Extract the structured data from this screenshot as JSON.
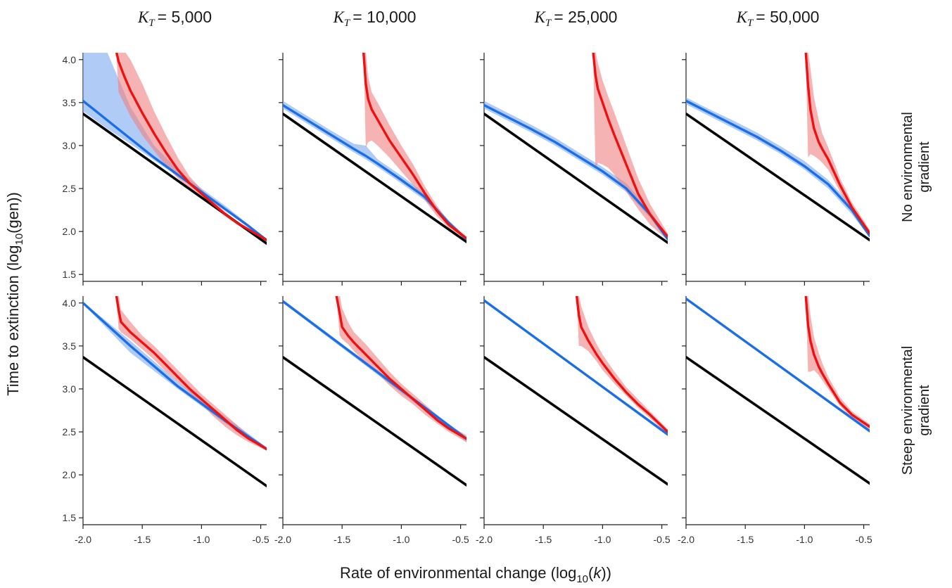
{
  "chart_data": {
    "type": "line",
    "columns": [
      {
        "title": "K_T = 5,000",
        "symbol": "K",
        "subscript": "T",
        "value_text": "= 5,000"
      },
      {
        "title": "K_T = 10,000",
        "symbol": "K",
        "subscript": "T",
        "value_text": "= 10,000"
      },
      {
        "title": "K_T = 25,000",
        "symbol": "K",
        "subscript": "T",
        "value_text": "= 25,000"
      },
      {
        "title": "K_T = 50,000",
        "symbol": "K",
        "subscript": "T",
        "value_text": "= 50,000"
      }
    ],
    "rows": [
      {
        "label_lines": [
          "No environmental",
          "gradient"
        ]
      },
      {
        "label_lines": [
          "Steep environmental",
          "gradient"
        ]
      }
    ],
    "xlabel": "Rate of environmental change (log10(k))",
    "ylabel": "Time to extinction (log10(gen))",
    "xlim": [
      -2.0,
      -0.45
    ],
    "ylim": [
      1.42,
      4.08
    ],
    "xticks": [
      -2.0,
      -1.5,
      -1.0,
      -0.5
    ],
    "yticks": [
      1.5,
      2.0,
      2.5,
      3.0,
      3.5,
      4.0
    ],
    "xtick_labels": [
      "-2.0",
      "-1.5",
      "-1.0",
      "-0.5"
    ],
    "ytick_labels": [
      "1.5",
      "2.0",
      "2.5",
      "3.0",
      "3.5",
      "4.0"
    ],
    "colors": {
      "black": "#000000",
      "blue": "#1a6fe8",
      "blue_band": "#7aa8f0",
      "red": "#ee1111",
      "red_band": "#f08080",
      "black_band": "#888888"
    },
    "panels": [
      {
        "row": 0,
        "col": 0,
        "black": {
          "x": [
            -2.0,
            -0.45
          ],
          "y": [
            3.37,
            1.86
          ],
          "band": 0.02
        },
        "blue": {
          "x": [
            -2.0,
            -1.8,
            -1.6,
            -1.4,
            -1.2,
            -1.0,
            -0.8,
            -0.6,
            -0.45
          ],
          "y": [
            3.52,
            3.3,
            3.08,
            2.86,
            2.66,
            2.46,
            2.26,
            2.06,
            1.9
          ],
          "lower": [
            3.4,
            3.2,
            3.02,
            2.83,
            2.64,
            2.44,
            2.25,
            2.05,
            1.89
          ],
          "upper": [
            4.1,
            4.1,
            3.45,
            3.0,
            2.72,
            2.5,
            2.3,
            2.08,
            1.91
          ]
        },
        "red": {
          "x": [
            -1.72,
            -1.7,
            -1.65,
            -1.6,
            -1.5,
            -1.4,
            -1.3,
            -1.2,
            -1.1,
            -1.0,
            -0.9,
            -0.8,
            -0.7,
            -0.6,
            -0.45
          ],
          "y": [
            4.1,
            3.98,
            3.8,
            3.64,
            3.38,
            3.14,
            2.92,
            2.72,
            2.56,
            2.44,
            2.32,
            2.2,
            2.1,
            2.02,
            1.9
          ],
          "lower": [
            4.1,
            3.62,
            3.48,
            3.34,
            3.12,
            2.94,
            2.76,
            2.62,
            2.5,
            2.4,
            2.29,
            2.18,
            2.08,
            2.0,
            1.89
          ],
          "upper": [
            4.1,
            4.1,
            4.1,
            4.0,
            3.72,
            3.4,
            3.12,
            2.86,
            2.64,
            2.49,
            2.36,
            2.23,
            2.12,
            2.04,
            1.91
          ]
        }
      },
      {
        "row": 0,
        "col": 1,
        "black": {
          "x": [
            -2.0,
            -0.45
          ],
          "y": [
            3.37,
            1.88
          ],
          "band": 0.02
        },
        "blue": {
          "x": [
            -2.0,
            -1.8,
            -1.6,
            -1.4,
            -1.3,
            -1.2,
            -1.0,
            -0.8,
            -0.6,
            -0.45
          ],
          "y": [
            3.47,
            3.3,
            3.13,
            2.96,
            2.88,
            2.79,
            2.6,
            2.4,
            2.1,
            1.91
          ],
          "lower": [
            3.43,
            3.26,
            3.09,
            2.92,
            2.84,
            2.75,
            2.56,
            2.36,
            2.08,
            1.89
          ],
          "upper": [
            3.52,
            3.35,
            3.18,
            3.02,
            3.0,
            2.84,
            2.65,
            2.44,
            2.13,
            1.93
          ]
        },
        "red": {
          "x": [
            -1.32,
            -1.3,
            -1.28,
            -1.25,
            -1.2,
            -1.1,
            -1.0,
            -0.9,
            -0.8,
            -0.7,
            -0.6,
            -0.45
          ],
          "y": [
            4.1,
            3.72,
            3.54,
            3.42,
            3.3,
            3.06,
            2.86,
            2.66,
            2.44,
            2.24,
            2.08,
            1.92
          ],
          "lower": [
            4.1,
            2.98,
            3.04,
            3.06,
            3.0,
            2.86,
            2.7,
            2.54,
            2.36,
            2.18,
            2.04,
            1.9
          ],
          "upper": [
            4.1,
            4.1,
            3.8,
            3.62,
            3.5,
            3.24,
            3.0,
            2.78,
            2.52,
            2.3,
            2.12,
            1.94
          ]
        }
      },
      {
        "row": 0,
        "col": 2,
        "black": {
          "x": [
            -2.0,
            -0.45
          ],
          "y": [
            3.37,
            1.87
          ],
          "band": 0.02
        },
        "blue": {
          "x": [
            -2.0,
            -1.8,
            -1.6,
            -1.4,
            -1.2,
            -1.0,
            -0.8,
            -0.6,
            -0.45
          ],
          "y": [
            3.47,
            3.33,
            3.19,
            3.04,
            2.87,
            2.7,
            2.5,
            2.2,
            1.91
          ],
          "lower": [
            3.43,
            3.29,
            3.15,
            3.0,
            2.83,
            2.66,
            2.46,
            2.16,
            1.89
          ],
          "upper": [
            3.52,
            3.38,
            3.24,
            3.09,
            2.92,
            2.75,
            2.56,
            2.25,
            1.93
          ]
        },
        "red": {
          "x": [
            -1.08,
            -1.06,
            -1.04,
            -1.0,
            -0.95,
            -0.9,
            -0.8,
            -0.7,
            -0.6,
            -0.45
          ],
          "y": [
            4.1,
            3.82,
            3.66,
            3.5,
            3.3,
            3.12,
            2.78,
            2.44,
            2.2,
            1.94
          ],
          "lower": [
            4.1,
            2.72,
            2.8,
            2.78,
            2.74,
            2.66,
            2.46,
            2.26,
            2.08,
            1.9
          ],
          "upper": [
            4.1,
            4.1,
            3.96,
            3.76,
            3.56,
            3.38,
            3.0,
            2.62,
            2.32,
            1.98
          ]
        }
      },
      {
        "row": 0,
        "col": 3,
        "black": {
          "x": [
            -2.0,
            -0.45
          ],
          "y": [
            3.37,
            1.9
          ],
          "band": 0.02
        },
        "blue": {
          "x": [
            -2.0,
            -1.8,
            -1.6,
            -1.4,
            -1.2,
            -1.0,
            -0.8,
            -0.6,
            -0.45
          ],
          "y": [
            3.52,
            3.38,
            3.24,
            3.1,
            2.94,
            2.76,
            2.55,
            2.25,
            1.95
          ],
          "lower": [
            3.48,
            3.34,
            3.2,
            3.06,
            2.9,
            2.72,
            2.5,
            2.2,
            1.93
          ],
          "upper": [
            3.56,
            3.42,
            3.29,
            3.15,
            2.99,
            2.82,
            2.6,
            2.3,
            1.97
          ]
        },
        "red": {
          "x": [
            -0.99,
            -0.97,
            -0.95,
            -0.92,
            -0.88,
            -0.85,
            -0.8,
            -0.7,
            -0.6,
            -0.45
          ],
          "y": [
            4.1,
            3.7,
            3.42,
            3.2,
            3.04,
            2.96,
            2.84,
            2.54,
            2.28,
            1.98
          ],
          "lower": [
            4.1,
            2.86,
            2.9,
            2.88,
            2.84,
            2.8,
            2.72,
            2.46,
            2.22,
            1.94
          ],
          "upper": [
            4.1,
            4.1,
            3.9,
            3.56,
            3.3,
            3.14,
            2.98,
            2.62,
            2.34,
            2.02
          ]
        }
      },
      {
        "row": 1,
        "col": 0,
        "black": {
          "x": [
            -2.0,
            -0.45
          ],
          "y": [
            3.37,
            1.87
          ],
          "band": 0.02
        },
        "blue": {
          "x": [
            -2.0,
            -1.6,
            -1.2,
            -0.8,
            -0.45
          ],
          "y": [
            4.0,
            3.5,
            3.03,
            2.63,
            2.3
          ],
          "lower": [
            3.99,
            3.42,
            3.0,
            2.6,
            2.28
          ],
          "upper": [
            4.01,
            3.56,
            3.08,
            2.68,
            2.32
          ]
        },
        "red": {
          "x": [
            -1.72,
            -1.7,
            -1.68,
            -1.6,
            -1.5,
            -1.4,
            -1.3,
            -1.2,
            -1.1,
            -1.0,
            -0.9,
            -0.8,
            -0.7,
            -0.6,
            -0.45
          ],
          "y": [
            4.1,
            3.92,
            3.78,
            3.66,
            3.54,
            3.42,
            3.28,
            3.14,
            3.0,
            2.88,
            2.76,
            2.64,
            2.52,
            2.42,
            2.3
          ],
          "lower": [
            4.1,
            3.7,
            3.66,
            3.58,
            3.46,
            3.34,
            3.2,
            3.08,
            2.96,
            2.82,
            2.68,
            2.56,
            2.46,
            2.38,
            2.28
          ],
          "upper": [
            4.1,
            4.1,
            3.92,
            3.78,
            3.62,
            3.5,
            3.36,
            3.22,
            3.08,
            2.94,
            2.82,
            2.7,
            2.58,
            2.46,
            2.32
          ]
        }
      },
      {
        "row": 1,
        "col": 1,
        "black": {
          "x": [
            -2.0,
            -0.45
          ],
          "y": [
            3.37,
            1.88
          ],
          "band": 0.02
        },
        "blue": {
          "x": [
            -2.0,
            -0.45
          ],
          "y": [
            4.02,
            2.42
          ],
          "lower": [
            4.0,
            2.38
          ],
          "upper": [
            4.04,
            2.44
          ]
        },
        "red": {
          "x": [
            -1.55,
            -1.52,
            -1.5,
            -1.45,
            -1.4,
            -1.3,
            -1.2,
            -1.1,
            -1.0,
            -0.9,
            -0.8,
            -0.7,
            -0.6,
            -0.45
          ],
          "y": [
            4.1,
            3.88,
            3.72,
            3.62,
            3.54,
            3.4,
            3.26,
            3.12,
            3.0,
            2.88,
            2.76,
            2.64,
            2.54,
            2.42
          ],
          "lower": [
            4.1,
            3.62,
            3.58,
            3.52,
            3.44,
            3.3,
            3.18,
            3.04,
            2.92,
            2.82,
            2.7,
            2.6,
            2.5,
            2.38
          ],
          "upper": [
            4.1,
            4.1,
            3.94,
            3.78,
            3.66,
            3.52,
            3.36,
            3.2,
            3.06,
            2.94,
            2.82,
            2.7,
            2.58,
            2.46
          ]
        }
      },
      {
        "row": 1,
        "col": 2,
        "black": {
          "x": [
            -2.0,
            -0.45
          ],
          "y": [
            3.37,
            1.89
          ],
          "band": 0.02
        },
        "blue": {
          "x": [
            -2.0,
            -0.45
          ],
          "y": [
            4.03,
            2.47
          ],
          "lower": [
            4.02,
            2.45
          ],
          "upper": [
            4.04,
            2.49
          ]
        },
        "red": {
          "x": [
            -1.22,
            -1.2,
            -1.18,
            -1.12,
            -1.05,
            -1.0,
            -0.9,
            -0.8,
            -0.7,
            -0.6,
            -0.45
          ],
          "y": [
            4.1,
            3.86,
            3.72,
            3.56,
            3.4,
            3.3,
            3.12,
            2.96,
            2.82,
            2.7,
            2.5
          ],
          "lower": [
            4.1,
            3.5,
            3.5,
            3.44,
            3.32,
            3.22,
            3.06,
            2.92,
            2.78,
            2.66,
            2.47
          ],
          "upper": [
            4.1,
            4.1,
            3.96,
            3.72,
            3.52,
            3.4,
            3.2,
            3.02,
            2.88,
            2.74,
            2.53
          ]
        }
      },
      {
        "row": 1,
        "col": 3,
        "black": {
          "x": [
            -2.0,
            -0.45
          ],
          "y": [
            3.37,
            1.9
          ],
          "band": 0.02
        },
        "blue": {
          "x": [
            -2.0,
            -0.45
          ],
          "y": [
            4.05,
            2.51
          ],
          "lower": [
            4.04,
            2.49
          ],
          "upper": [
            4.06,
            2.53
          ]
        },
        "red": {
          "x": [
            -0.99,
            -0.97,
            -0.95,
            -0.92,
            -0.88,
            -0.85,
            -0.8,
            -0.7,
            -0.6,
            -0.45
          ],
          "y": [
            4.1,
            3.74,
            3.56,
            3.4,
            3.26,
            3.18,
            3.06,
            2.84,
            2.7,
            2.56
          ],
          "lower": [
            4.1,
            3.2,
            3.2,
            3.22,
            3.16,
            3.1,
            3.0,
            2.8,
            2.66,
            2.53
          ],
          "upper": [
            4.1,
            4.1,
            3.86,
            3.6,
            3.42,
            3.3,
            3.14,
            2.9,
            2.74,
            2.59
          ]
        }
      }
    ]
  }
}
